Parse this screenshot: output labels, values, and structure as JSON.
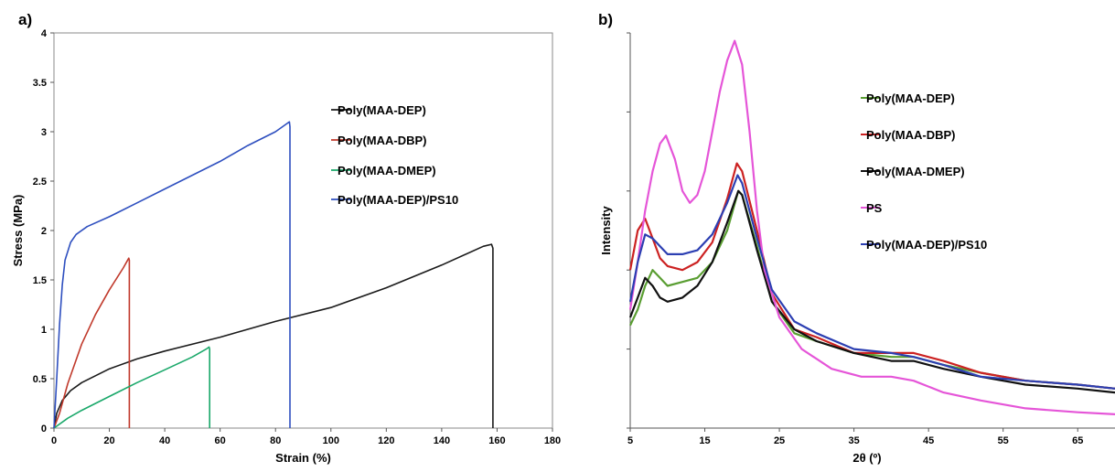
{
  "chart_data": [
    {
      "panel_label": "a)",
      "type": "line",
      "title": "",
      "xlabel": "Strain (%)",
      "ylabel": "Stress (MPa)",
      "xlim": [
        0,
        180
      ],
      "ylim": [
        0,
        4
      ],
      "x_ticks": [
        "0",
        "20",
        "40",
        "60",
        "80",
        "100",
        "120",
        "140",
        "160",
        "180"
      ],
      "y_ticks": [
        "0",
        "0.5",
        "1",
        "1.5",
        "2",
        "2.5",
        "3",
        "3.5",
        "4"
      ],
      "grid": false,
      "legend_position": "right",
      "series": [
        {
          "name": "Poly(MAA-DEP)",
          "color": "#1a1a1a",
          "points": [
            [
              0,
              0
            ],
            [
              1,
              0.15
            ],
            [
              3,
              0.28
            ],
            [
              6,
              0.38
            ],
            [
              10,
              0.46
            ],
            [
              20,
              0.6
            ],
            [
              30,
              0.7
            ],
            [
              40,
              0.78
            ],
            [
              60,
              0.92
            ],
            [
              80,
              1.08
            ],
            [
              100,
              1.22
            ],
            [
              120,
              1.42
            ],
            [
              140,
              1.65
            ],
            [
              155,
              1.84
            ],
            [
              158,
              1.86
            ],
            [
              158.5,
              1.82
            ],
            [
              158.5,
              0
            ]
          ]
        },
        {
          "name": "Poly(MAA-DBP)",
          "color": "#c0392b",
          "points": [
            [
              0,
              0
            ],
            [
              2,
              0.15
            ],
            [
              5,
              0.45
            ],
            [
              10,
              0.85
            ],
            [
              15,
              1.15
            ],
            [
              20,
              1.4
            ],
            [
              25,
              1.62
            ],
            [
              27,
              1.72
            ],
            [
              27.2,
              1.7
            ],
            [
              27.2,
              0
            ]
          ]
        },
        {
          "name": "Poly(MAA-DMEP)",
          "color": "#1aa86a",
          "points": [
            [
              0,
              0
            ],
            [
              5,
              0.1
            ],
            [
              10,
              0.18
            ],
            [
              20,
              0.32
            ],
            [
              30,
              0.46
            ],
            [
              40,
              0.59
            ],
            [
              50,
              0.72
            ],
            [
              55,
              0.8
            ],
            [
              56,
              0.82
            ],
            [
              56.2,
              0.8
            ],
            [
              56.2,
              0
            ]
          ]
        },
        {
          "name": "Poly(MAA-DEP)/PS10",
          "color": "#2e4fbf",
          "points": [
            [
              0,
              0
            ],
            [
              1,
              0.5
            ],
            [
              2,
              1.05
            ],
            [
              3,
              1.45
            ],
            [
              4,
              1.7
            ],
            [
              6,
              1.88
            ],
            [
              8,
              1.96
            ],
            [
              12,
              2.04
            ],
            [
              20,
              2.14
            ],
            [
              30,
              2.28
            ],
            [
              40,
              2.42
            ],
            [
              50,
              2.56
            ],
            [
              60,
              2.7
            ],
            [
              70,
              2.86
            ],
            [
              80,
              3.0
            ],
            [
              84,
              3.08
            ],
            [
              85,
              3.1
            ],
            [
              85.2,
              3.05
            ],
            [
              85.2,
              0
            ]
          ]
        }
      ]
    },
    {
      "panel_label": "b)",
      "type": "line",
      "title": "",
      "xlabel": "2θ (º)",
      "ylabel": "Intensity",
      "xlim": [
        5,
        70
      ],
      "x_ticks": [
        "5",
        "15",
        "25",
        "35",
        "45",
        "55",
        "65"
      ],
      "y_ticks_unlabeled": 5,
      "grid": false,
      "legend_position": "right",
      "series": [
        {
          "name": "Poly(MAA-DEP)",
          "color": "#5a9e32",
          "points": [
            [
              5,
              0.26
            ],
            [
              6,
              0.3
            ],
            [
              7,
              0.36
            ],
            [
              8,
              0.4
            ],
            [
              9,
              0.38
            ],
            [
              10,
              0.36
            ],
            [
              12,
              0.37
            ],
            [
              14,
              0.38
            ],
            [
              16,
              0.42
            ],
            [
              18,
              0.5
            ],
            [
              19.5,
              0.6
            ],
            [
              20,
              0.59
            ],
            [
              22,
              0.46
            ],
            [
              24,
              0.32
            ],
            [
              27,
              0.24
            ],
            [
              30,
              0.22
            ],
            [
              35,
              0.19
            ],
            [
              40,
              0.18
            ],
            [
              43,
              0.18
            ],
            [
              47,
              0.16
            ],
            [
              52,
              0.14
            ],
            [
              58,
              0.12
            ],
            [
              65,
              0.11
            ],
            [
              70,
              0.1
            ]
          ]
        },
        {
          "name": "Poly(MAA-DBP)",
          "color": "#cc2222",
          "points": [
            [
              5,
              0.4
            ],
            [
              6,
              0.5
            ],
            [
              7,
              0.53
            ],
            [
              8,
              0.48
            ],
            [
              9,
              0.43
            ],
            [
              10,
              0.41
            ],
            [
              12,
              0.4
            ],
            [
              14,
              0.42
            ],
            [
              16,
              0.47
            ],
            [
              18,
              0.58
            ],
            [
              19.3,
              0.67
            ],
            [
              20,
              0.65
            ],
            [
              22,
              0.5
            ],
            [
              24,
              0.34
            ],
            [
              27,
              0.25
            ],
            [
              30,
              0.23
            ],
            [
              35,
              0.19
            ],
            [
              40,
              0.19
            ],
            [
              43,
              0.19
            ],
            [
              47,
              0.17
            ],
            [
              52,
              0.14
            ],
            [
              58,
              0.12
            ],
            [
              65,
              0.11
            ],
            [
              70,
              0.1
            ]
          ]
        },
        {
          "name": "Poly(MAA-DMEP)",
          "color": "#111111",
          "points": [
            [
              5,
              0.28
            ],
            [
              6,
              0.33
            ],
            [
              7,
              0.38
            ],
            [
              8,
              0.36
            ],
            [
              9,
              0.33
            ],
            [
              10,
              0.32
            ],
            [
              12,
              0.33
            ],
            [
              14,
              0.36
            ],
            [
              16,
              0.42
            ],
            [
              18,
              0.52
            ],
            [
              19.5,
              0.6
            ],
            [
              20,
              0.59
            ],
            [
              22,
              0.45
            ],
            [
              24,
              0.32
            ],
            [
              27,
              0.25
            ],
            [
              30,
              0.22
            ],
            [
              35,
              0.19
            ],
            [
              40,
              0.17
            ],
            [
              43,
              0.17
            ],
            [
              47,
              0.15
            ],
            [
              52,
              0.13
            ],
            [
              58,
              0.11
            ],
            [
              65,
              0.1
            ],
            [
              70,
              0.09
            ]
          ]
        },
        {
          "name": "PS",
          "color": "#e555d8",
          "points": [
            [
              5,
              0.3
            ],
            [
              6,
              0.42
            ],
            [
              7,
              0.55
            ],
            [
              8,
              0.65
            ],
            [
              9,
              0.72
            ],
            [
              9.8,
              0.74
            ],
            [
              11,
              0.68
            ],
            [
              12,
              0.6
            ],
            [
              13,
              0.57
            ],
            [
              14,
              0.59
            ],
            [
              15,
              0.65
            ],
            [
              16,
              0.75
            ],
            [
              17,
              0.85
            ],
            [
              18,
              0.93
            ],
            [
              19,
              0.98
            ],
            [
              20,
              0.92
            ],
            [
              21,
              0.75
            ],
            [
              22,
              0.55
            ],
            [
              23,
              0.4
            ],
            [
              25,
              0.28
            ],
            [
              28,
              0.2
            ],
            [
              32,
              0.15
            ],
            [
              36,
              0.13
            ],
            [
              40,
              0.13
            ],
            [
              43,
              0.12
            ],
            [
              47,
              0.09
            ],
            [
              52,
              0.07
            ],
            [
              58,
              0.05
            ],
            [
              65,
              0.04
            ],
            [
              70,
              0.035
            ]
          ]
        },
        {
          "name": "Poly(MAA-DEP)/PS10",
          "color": "#2c3fb2",
          "points": [
            [
              5,
              0.32
            ],
            [
              6,
              0.42
            ],
            [
              7,
              0.49
            ],
            [
              8,
              0.48
            ],
            [
              9,
              0.46
            ],
            [
              10,
              0.44
            ],
            [
              12,
              0.44
            ],
            [
              14,
              0.45
            ],
            [
              16,
              0.49
            ],
            [
              18,
              0.57
            ],
            [
              19.4,
              0.64
            ],
            [
              20,
              0.62
            ],
            [
              22,
              0.48
            ],
            [
              24,
              0.35
            ],
            [
              27,
              0.27
            ],
            [
              30,
              0.24
            ],
            [
              35,
              0.2
            ],
            [
              40,
              0.19
            ],
            [
              43,
              0.18
            ],
            [
              47,
              0.16
            ],
            [
              52,
              0.13
            ],
            [
              58,
              0.12
            ],
            [
              65,
              0.11
            ],
            [
              70,
              0.1
            ]
          ]
        }
      ]
    }
  ]
}
